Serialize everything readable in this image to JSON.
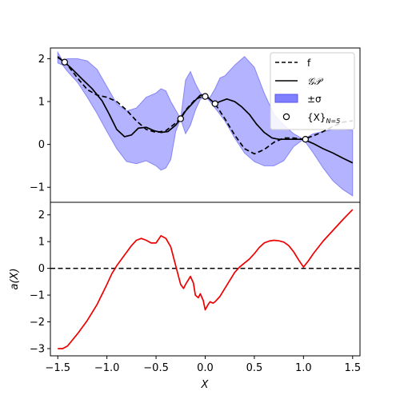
{
  "chart_data": [
    {
      "panel": "top",
      "type": "line",
      "xlim": [
        -1.575,
        1.575
      ],
      "ylim": [
        -1.35,
        2.25
      ],
      "yticks": [
        -1,
        0,
        1,
        2
      ],
      "ytick_labels": [
        "−1",
        "0",
        "1",
        "2"
      ],
      "grid": false,
      "legend": {
        "placement": "top-right",
        "entries": [
          {
            "label": "f",
            "style": "dashed-black-line"
          },
          {
            "label": "𝒢𝒫",
            "style": "solid-black-line"
          },
          {
            "label": "±σ",
            "style": "blue-band"
          },
          {
            "label": "{X}",
            "label_sub": "N=5",
            "style": "white-circle-marker"
          }
        ]
      },
      "colors": {
        "f": "#000000",
        "gp": "#000000",
        "band_fill": "#8080ff",
        "band_stroke": "#5555ee",
        "points": "#ffffff"
      },
      "series": [
        {
          "name": "f",
          "style": "dashed",
          "x": [
            -1.5,
            -1.4,
            -1.3,
            -1.2,
            -1.1,
            -1.0,
            -0.9,
            -0.8,
            -0.7,
            -0.6,
            -0.5,
            -0.4,
            -0.3,
            -0.25,
            -0.2,
            -0.1,
            0.0,
            0.05,
            0.1,
            0.2,
            0.3,
            0.4,
            0.5,
            0.6,
            0.7,
            0.8,
            0.9,
            1.0,
            1.1,
            1.2,
            1.3,
            1.4,
            1.5
          ],
          "y": [
            2.05,
            1.85,
            1.55,
            1.28,
            1.15,
            1.1,
            1.0,
            0.8,
            0.55,
            0.35,
            0.28,
            0.32,
            0.5,
            0.62,
            0.8,
            1.05,
            1.15,
            1.05,
            0.95,
            0.6,
            0.22,
            -0.1,
            -0.22,
            -0.12,
            0.05,
            0.15,
            0.15,
            0.12,
            0.2,
            0.3,
            0.42,
            0.52,
            0.55
          ]
        },
        {
          "name": "𝒢𝒫",
          "style": "solid",
          "x": [
            -1.5,
            -1.43,
            -1.35,
            -1.25,
            -1.15,
            -1.05,
            -0.98,
            -0.9,
            -0.82,
            -0.75,
            -0.68,
            -0.6,
            -0.52,
            -0.45,
            -0.38,
            -0.3,
            -0.25,
            -0.2,
            -0.12,
            -0.05,
            0.0,
            0.05,
            0.1,
            0.15,
            0.22,
            0.3,
            0.37,
            0.45,
            0.52,
            0.6,
            0.68,
            0.75,
            0.82,
            0.9,
            1.0,
            1.1,
            1.2,
            1.3,
            1.4,
            1.5
          ],
          "y": [
            2.03,
            1.92,
            1.75,
            1.52,
            1.3,
            1.02,
            0.72,
            0.35,
            0.18,
            0.22,
            0.38,
            0.4,
            0.32,
            0.28,
            0.3,
            0.45,
            0.6,
            0.78,
            0.98,
            1.15,
            1.15,
            1.05,
            0.95,
            1.0,
            1.06,
            1.0,
            0.88,
            0.7,
            0.48,
            0.28,
            0.15,
            0.12,
            0.12,
            0.12,
            0.12,
            0.02,
            -0.1,
            -0.2,
            -0.32,
            -0.43
          ]
        }
      ],
      "band": {
        "name": "±σ",
        "x": [
          -1.5,
          -1.45,
          -1.4,
          -1.3,
          -1.2,
          -1.1,
          -1.0,
          -0.9,
          -0.8,
          -0.7,
          -0.6,
          -0.5,
          -0.45,
          -0.4,
          -0.35,
          -0.3,
          -0.25,
          -0.2,
          -0.15,
          -0.1,
          -0.05,
          0.0,
          0.05,
          0.1,
          0.15,
          0.2,
          0.3,
          0.4,
          0.5,
          0.6,
          0.7,
          0.8,
          0.9,
          1.0,
          1.1,
          1.2,
          1.3,
          1.4,
          1.5
        ],
        "upper": [
          2.15,
          1.95,
          2.0,
          2.0,
          1.95,
          1.75,
          1.35,
          0.95,
          0.78,
          0.85,
          1.1,
          1.2,
          1.3,
          1.25,
          1.0,
          0.8,
          0.6,
          1.5,
          1.7,
          1.42,
          1.2,
          1.12,
          1.1,
          1.3,
          1.55,
          1.6,
          1.85,
          2.05,
          1.8,
          1.2,
          0.7,
          0.45,
          0.25,
          0.12,
          0.25,
          0.3,
          0.35,
          0.35,
          0.33
        ],
        "lower": [
          1.9,
          1.85,
          1.7,
          1.45,
          1.1,
          0.72,
          0.3,
          -0.1,
          -0.4,
          -0.45,
          -0.38,
          -0.5,
          -0.6,
          -0.55,
          -0.35,
          0.3,
          0.6,
          0.25,
          0.45,
          0.8,
          1.05,
          1.12,
          1.0,
          0.85,
          0.7,
          0.55,
          0.15,
          -0.2,
          -0.4,
          -0.5,
          -0.5,
          -0.38,
          -0.05,
          0.12,
          -0.2,
          -0.55,
          -0.85,
          -1.05,
          -1.2
        ]
      },
      "points": {
        "name": "{X}",
        "x": [
          -1.43,
          -0.25,
          0.0,
          0.1,
          1.02
        ],
        "y": [
          1.92,
          0.6,
          1.12,
          0.95,
          0.12
        ]
      }
    },
    {
      "panel": "bottom",
      "type": "line",
      "xlim": [
        -1.575,
        1.575
      ],
      "ylim": [
        -3.27,
        2.47
      ],
      "xticks": [
        -1.5,
        -1.0,
        -0.5,
        0.0,
        0.5,
        1.0,
        1.5
      ],
      "xtick_labels": [
        "−1.5",
        "−1.0",
        "−0.5",
        "0.0",
        "0.5",
        "1.0",
        "1.5"
      ],
      "yticks": [
        -3,
        -2,
        -1,
        0,
        1,
        2
      ],
      "ytick_labels": [
        "−3",
        "−2",
        "−1",
        "0",
        "1",
        "2"
      ],
      "xlabel": "X",
      "ylabel": "a(X)",
      "grid": false,
      "colors": {
        "acq": "#ee0000",
        "zero_line": "#000000"
      },
      "hline": {
        "y": 0,
        "style": "dashed"
      },
      "series": [
        {
          "name": "a(X)",
          "x": [
            -1.5,
            -1.45,
            -1.4,
            -1.3,
            -1.2,
            -1.1,
            -1.0,
            -0.95,
            -0.9,
            -0.85,
            -0.8,
            -0.75,
            -0.7,
            -0.65,
            -0.6,
            -0.55,
            -0.5,
            -0.45,
            -0.4,
            -0.35,
            -0.3,
            -0.25,
            -0.22,
            -0.2,
            -0.17,
            -0.15,
            -0.12,
            -0.1,
            -0.07,
            -0.05,
            -0.02,
            0.0,
            0.03,
            0.05,
            0.08,
            0.1,
            0.15,
            0.2,
            0.25,
            0.3,
            0.35,
            0.4,
            0.45,
            0.5,
            0.55,
            0.6,
            0.65,
            0.7,
            0.75,
            0.8,
            0.85,
            0.9,
            0.95,
            1.0,
            1.05,
            1.1,
            1.2,
            1.3,
            1.4,
            1.5
          ],
          "y": [
            -3.0,
            -3.0,
            -2.9,
            -2.45,
            -1.95,
            -1.35,
            -0.6,
            -0.2,
            0.1,
            0.35,
            0.6,
            0.85,
            1.05,
            1.12,
            1.05,
            0.95,
            0.95,
            1.22,
            1.12,
            0.8,
            0.1,
            -0.6,
            -0.75,
            -0.6,
            -0.42,
            -0.3,
            -0.55,
            -1.0,
            -1.1,
            -0.95,
            -1.2,
            -1.55,
            -1.35,
            -1.25,
            -1.3,
            -1.25,
            -1.05,
            -0.75,
            -0.45,
            -0.15,
            0.05,
            0.2,
            0.35,
            0.55,
            0.78,
            0.95,
            1.02,
            1.05,
            1.03,
            0.98,
            0.85,
            0.62,
            0.32,
            0.05,
            0.28,
            0.55,
            1.02,
            1.42,
            1.82,
            2.2
          ]
        }
      ]
    }
  ]
}
